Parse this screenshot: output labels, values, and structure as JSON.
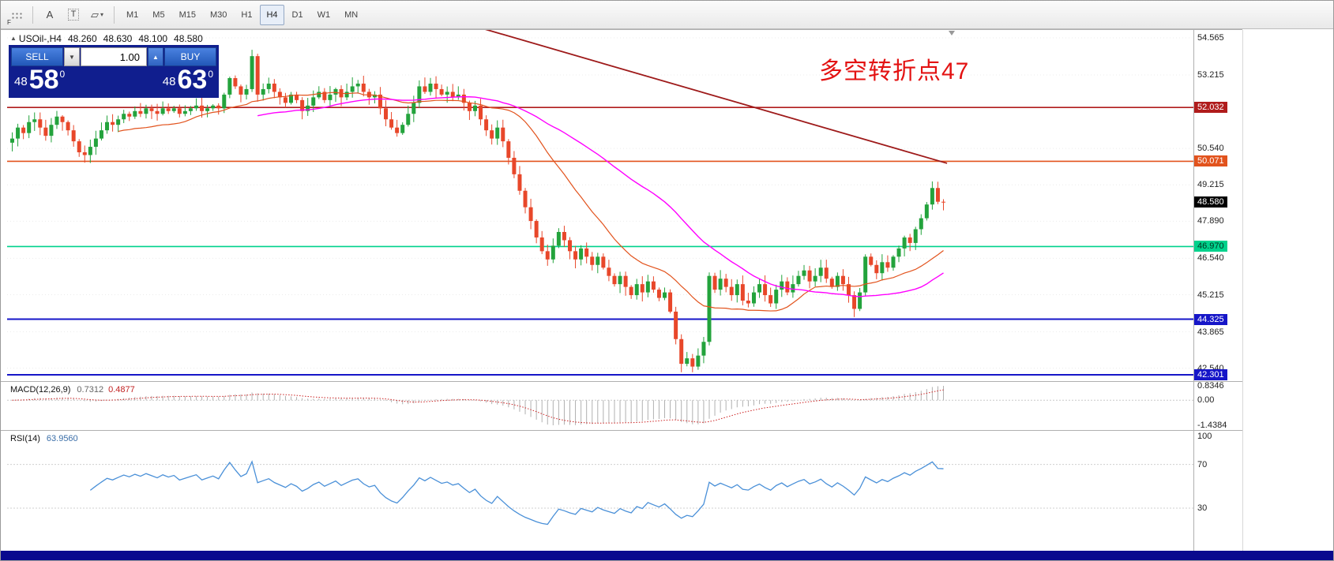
{
  "toolbar": {
    "tools": [
      {
        "id": "grid",
        "badge": "F"
      },
      {
        "id": "text-label",
        "glyph": "A"
      },
      {
        "id": "text",
        "glyph": "T"
      },
      {
        "id": "shapes",
        "glyph": "▱",
        "dropdown": "▾"
      }
    ],
    "timeframes": [
      "M1",
      "M5",
      "M15",
      "M30",
      "H1",
      "H4",
      "D1",
      "W1",
      "MN"
    ],
    "active_timeframe": "H4"
  },
  "chart_header": {
    "icon": "▲",
    "symbol": "USOil-,H4",
    "open": "48.260",
    "high": "48.630",
    "low": "48.100",
    "close": "48.580"
  },
  "trade_panel": {
    "sell_label": "SELL",
    "buy_label": "BUY",
    "volume": "1.00",
    "dropdown_arrow": "▼",
    "up_arrow": "▲",
    "sell_price": {
      "small": "48",
      "big": "58",
      "sup": "0"
    },
    "buy_price": {
      "small": "48",
      "big": "63",
      "sup": "0"
    }
  },
  "annotation": {
    "text": "多空转折点47",
    "color": "#e31212"
  },
  "chart_data": {
    "type": "candlestick",
    "symbol": "USOil-",
    "timeframe": "H4",
    "last_ohlc": {
      "open": 48.26,
      "high": 48.63,
      "low": 48.1,
      "close": 48.58
    },
    "price_ticks": [
      {
        "label": "54.565",
        "price": 54.565
      },
      {
        "label": "53.215",
        "price": 53.215
      },
      {
        "label": "50.540",
        "price": 50.54
      },
      {
        "label": "49.215",
        "price": 49.215
      },
      {
        "label": "47.890",
        "price": 47.89
      },
      {
        "label": "46.540",
        "price": 46.54
      },
      {
        "label": "45.215",
        "price": 45.215
      },
      {
        "label": "43.865",
        "price": 43.865
      },
      {
        "label": "42.540",
        "price": 42.54
      }
    ],
    "price_badges": [
      {
        "label": "52.032",
        "price": 52.032,
        "bg": "#b01c1c",
        "fg": "#ffffff",
        "line": true,
        "line_color": "#b01c1c",
        "line_width": 1.6
      },
      {
        "label": "50.071",
        "price": 50.071,
        "bg": "#e2531d",
        "fg": "#ffffff",
        "line": true,
        "line_color": "#e2531d",
        "line_width": 1.6
      },
      {
        "label": "48.580",
        "price": 48.58,
        "bg": "#000000",
        "fg": "#ffffff",
        "line": false
      },
      {
        "label": "46.970",
        "price": 46.97,
        "bg": "#00d28c",
        "fg": "#00331f",
        "line": true,
        "line_color": "#00d28c",
        "line_width": 1.6
      },
      {
        "label": "44.325",
        "price": 44.325,
        "bg": "#1616c8",
        "fg": "#ffffff",
        "line": true,
        "line_color": "#1616c8",
        "line_width": 2
      },
      {
        "label": "42.301",
        "price": 42.301,
        "bg": "#1616c8",
        "fg": "#ffffff",
        "line": true,
        "line_color": "#1616c8",
        "line_width": 2
      }
    ],
    "closes": [
      50.9,
      51.3,
      51.1,
      51.5,
      51.6,
      51.3,
      51.0,
      51.4,
      51.7,
      51.5,
      51.2,
      50.8,
      50.4,
      50.3,
      50.6,
      50.9,
      51.2,
      51.5,
      51.4,
      51.6,
      51.8,
      51.7,
      51.9,
      51.8,
      52.0,
      51.9,
      51.8,
      52.0,
      51.9,
      52.0,
      51.8,
      51.9,
      52.0,
      52.1,
      51.9,
      52.0,
      52.1,
      52.0,
      52.5,
      53.1,
      52.8,
      52.5,
      52.7,
      53.9,
      52.5,
      52.7,
      52.9,
      52.6,
      52.4,
      52.2,
      52.5,
      52.3,
      51.9,
      52.1,
      52.4,
      52.6,
      52.3,
      52.5,
      52.7,
      52.4,
      52.6,
      52.8,
      52.9,
      52.6,
      52.4,
      52.5,
      52.0,
      51.6,
      51.3,
      51.1,
      51.4,
      51.8,
      52.2,
      52.8,
      52.6,
      52.9,
      52.7,
      52.5,
      52.6,
      52.4,
      52.5,
      52.2,
      51.9,
      52.1,
      51.6,
      51.2,
      50.9,
      51.3,
      50.8,
      50.2,
      49.6,
      49.0,
      48.4,
      47.9,
      47.3,
      46.8,
      46.5,
      47.0,
      47.5,
      47.2,
      46.8,
      46.5,
      46.9,
      46.6,
      46.3,
      46.6,
      46.2,
      45.9,
      45.6,
      45.9,
      45.5,
      45.2,
      45.6,
      45.3,
      45.7,
      45.4,
      45.1,
      45.3,
      44.6,
      43.6,
      42.7,
      42.9,
      42.6,
      43.0,
      43.5,
      45.9,
      45.4,
      45.8,
      45.5,
      45.2,
      45.6,
      45.0,
      44.9,
      45.3,
      45.6,
      45.2,
      44.9,
      45.4,
      45.7,
      45.3,
      45.6,
      45.9,
      46.1,
      45.7,
      45.9,
      46.2,
      45.8,
      45.5,
      45.9,
      45.6,
      45.2,
      44.7,
      45.3,
      46.6,
      46.3,
      46.0,
      46.4,
      46.2,
      46.6,
      46.9,
      47.3,
      47.1,
      47.6,
      48.0,
      48.5,
      49.1,
      48.6,
      48.58
    ],
    "up_color": "#23a33c",
    "down_color": "#e8472a",
    "ma_fast": {
      "period": 20,
      "color": "#e2531d"
    },
    "ma_slow": {
      "period": 45,
      "color": "#ff00ff"
    },
    "trend_line": {
      "from_index": 78,
      "from_price": 55.3,
      "to_index": 168,
      "to_price": 50.0,
      "color": "#9e1a1a"
    },
    "macd": {
      "label": "MACD(12,26,9)",
      "values_text": [
        "0.7312",
        "0.4877"
      ],
      "fast": 12,
      "slow": 26,
      "signal": 9,
      "hist_color": "#b0b0b0",
      "signal_color": "#cc2222",
      "axis_labels": [
        "0.8346",
        "0.00",
        "-1.4384"
      ]
    },
    "rsi": {
      "label": "RSI(14)",
      "value_text": "63.9560",
      "period": 14,
      "color": "#4a90d8",
      "axis_labels": [
        "100",
        "70",
        "30"
      ],
      "guide_levels": [
        70,
        30
      ]
    }
  }
}
